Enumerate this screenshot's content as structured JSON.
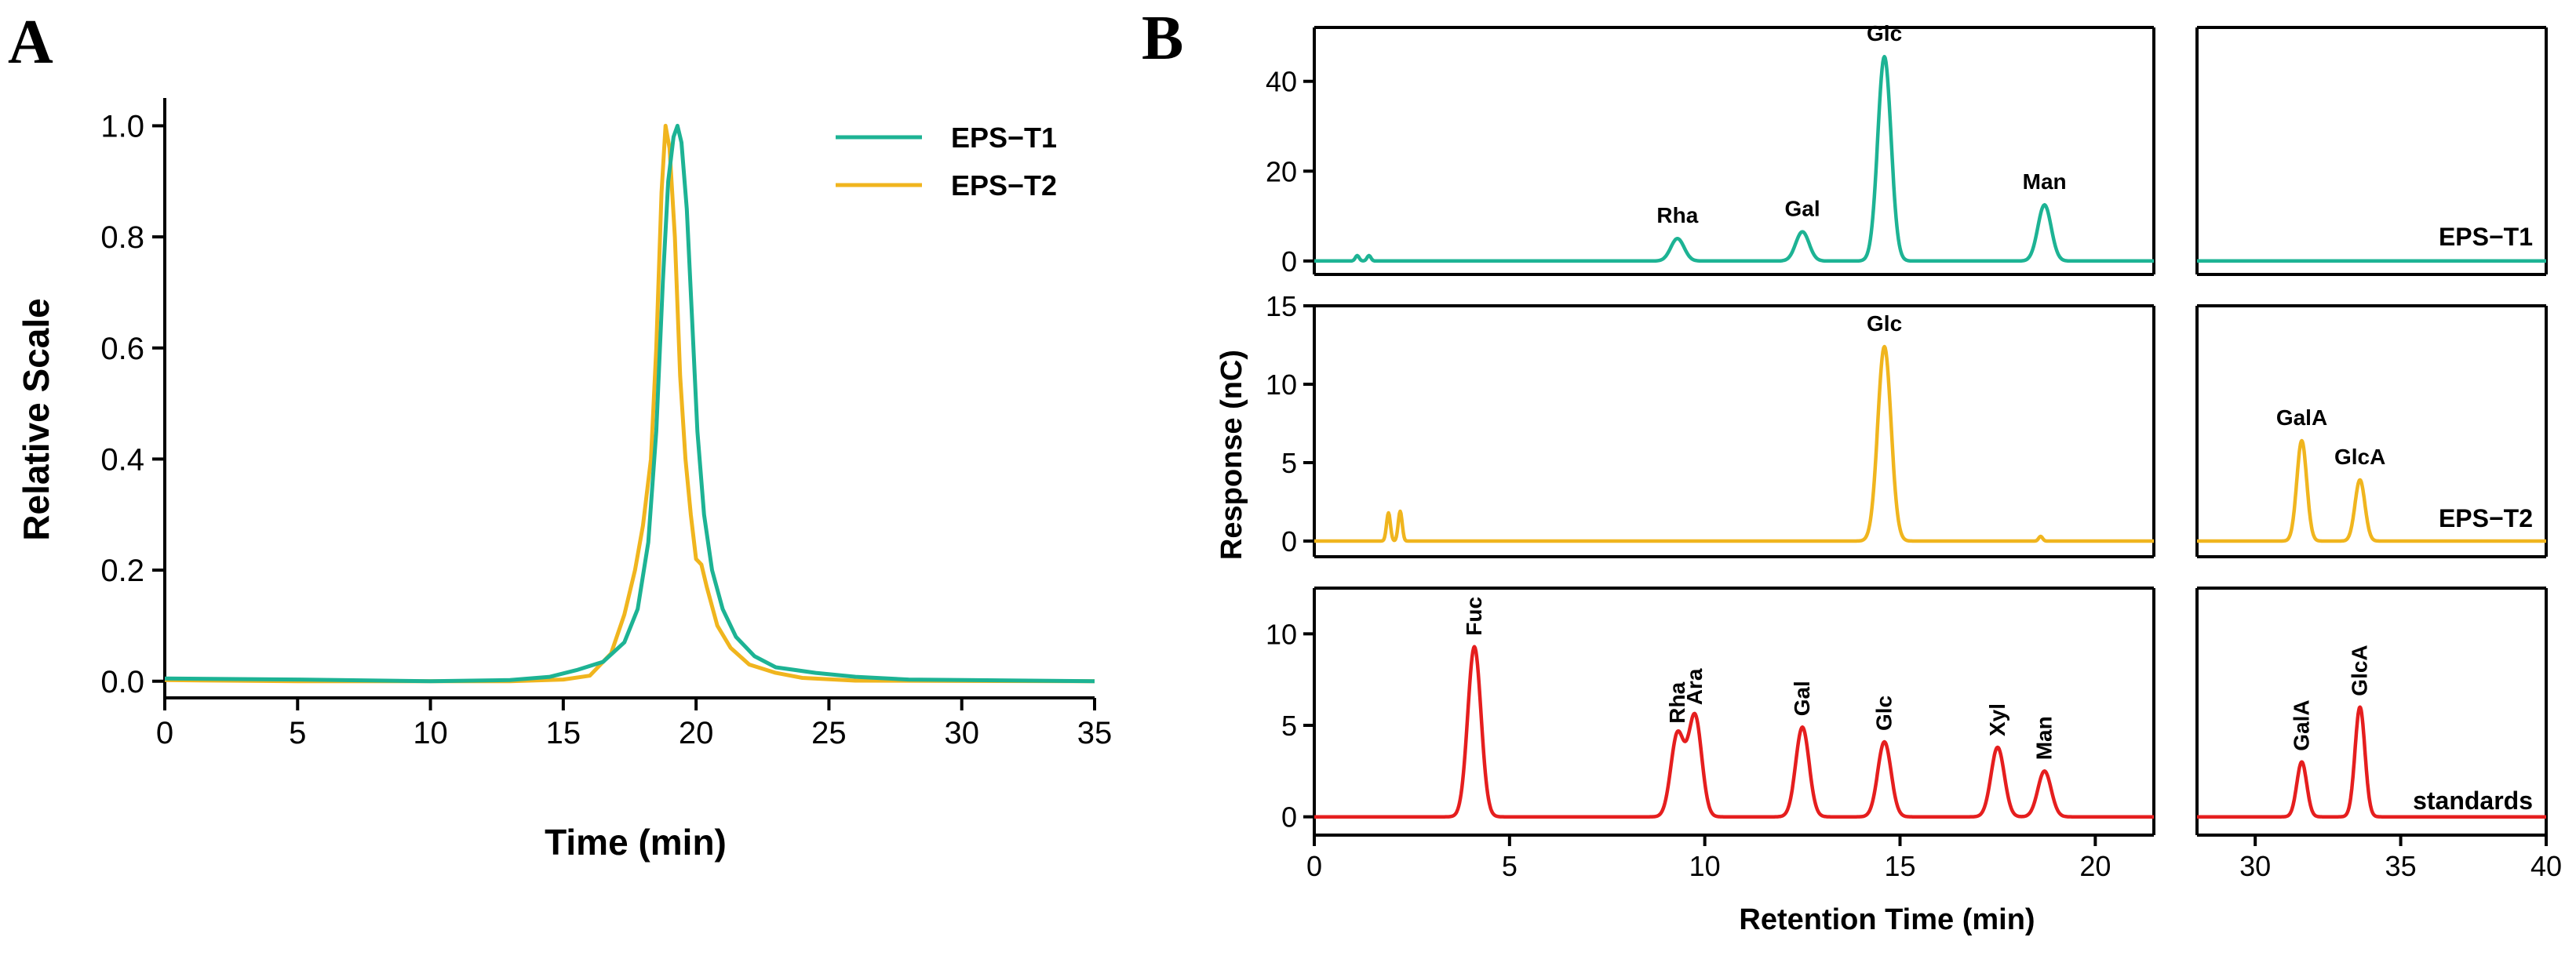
{
  "colors": {
    "t1": "#1db394",
    "t2": "#f0b51e",
    "std": "#e51e1e",
    "axis": "#000000"
  },
  "panel_labels": {
    "a": "A",
    "b": "B"
  },
  "chart_data": [
    {
      "type": "line",
      "panel": "A",
      "title": "",
      "xlabel": "Time (min)",
      "ylabel": "Relative Scale",
      "xlim": [
        0,
        35
      ],
      "ylim": [
        -0.03,
        1.05
      ],
      "xticks": [
        0,
        5,
        10,
        15,
        20,
        25,
        30,
        35
      ],
      "yticks": [
        0.0,
        0.2,
        0.4,
        0.6,
        0.8,
        1.0
      ],
      "ytick_labels": [
        "0.0",
        "0.2",
        "0.4",
        "0.6",
        "0.8",
        "1.0"
      ],
      "legend": {
        "position": "top-right",
        "entries": [
          "EPS−T1",
          "EPS−T2"
        ]
      },
      "series": [
        {
          "name": "EPS−T1",
          "color_key": "t1",
          "points": [
            [
              0,
              0.005
            ],
            [
              5,
              0.003
            ],
            [
              10,
              0.0
            ],
            [
              13,
              0.002
            ],
            [
              14.5,
              0.008
            ],
            [
              15.5,
              0.02
            ],
            [
              16.5,
              0.035
            ],
            [
              17.3,
              0.07
            ],
            [
              17.8,
              0.13
            ],
            [
              18.2,
              0.25
            ],
            [
              18.5,
              0.45
            ],
            [
              18.75,
              0.72
            ],
            [
              18.95,
              0.9
            ],
            [
              19.15,
              0.98
            ],
            [
              19.3,
              1.0
            ],
            [
              19.45,
              0.97
            ],
            [
              19.65,
              0.85
            ],
            [
              19.85,
              0.65
            ],
            [
              20.05,
              0.45
            ],
            [
              20.3,
              0.3
            ],
            [
              20.6,
              0.2
            ],
            [
              21.0,
              0.13
            ],
            [
              21.5,
              0.08
            ],
            [
              22.2,
              0.045
            ],
            [
              23.0,
              0.025
            ],
            [
              24.5,
              0.015
            ],
            [
              26,
              0.008
            ],
            [
              28,
              0.003
            ],
            [
              35,
              0.0
            ]
          ]
        },
        {
          "name": "EPS−T2",
          "color_key": "t2",
          "points": [
            [
              0,
              0.002
            ],
            [
              5,
              0.0
            ],
            [
              10,
              0.0
            ],
            [
              13,
              0.0
            ],
            [
              15,
              0.003
            ],
            [
              16,
              0.01
            ],
            [
              16.8,
              0.05
            ],
            [
              17.3,
              0.12
            ],
            [
              17.7,
              0.2
            ],
            [
              18.0,
              0.28
            ],
            [
              18.3,
              0.4
            ],
            [
              18.5,
              0.6
            ],
            [
              18.7,
              0.88
            ],
            [
              18.85,
              1.0
            ],
            [
              19.0,
              0.96
            ],
            [
              19.2,
              0.8
            ],
            [
              19.4,
              0.55
            ],
            [
              19.6,
              0.4
            ],
            [
              19.8,
              0.3
            ],
            [
              20.0,
              0.22
            ],
            [
              20.2,
              0.21
            ],
            [
              20.4,
              0.17
            ],
            [
              20.8,
              0.1
            ],
            [
              21.3,
              0.06
            ],
            [
              22,
              0.03
            ],
            [
              23,
              0.015
            ],
            [
              24,
              0.006
            ],
            [
              26,
              0.001
            ],
            [
              35,
              0.0
            ]
          ]
        }
      ]
    },
    {
      "type": "line",
      "panel": "B",
      "subplot": "EPS−T1",
      "trace_label": "EPS−T1",
      "xlim": [
        0,
        40
      ],
      "ylim": [
        -3,
        52
      ],
      "yticks": [
        0,
        20,
        40
      ],
      "ylabel": "Response (nC)",
      "color_key": "t1",
      "peaks": [
        {
          "name": "Rha",
          "x": 9.3,
          "y": 5.0
        },
        {
          "name": "Gal",
          "x": 12.5,
          "y": 6.5
        },
        {
          "name": "Glc",
          "x": 14.6,
          "y": 45.5
        },
        {
          "name": "Man",
          "x": 18.7,
          "y": 12.5
        }
      ],
      "noise": [
        {
          "x": 1.1,
          "y": 1.2
        },
        {
          "x": 1.4,
          "y": 1.2
        }
      ]
    },
    {
      "type": "line",
      "panel": "B",
      "subplot": "EPS−T2",
      "trace_label": "EPS−T2",
      "xlim": [
        0,
        40
      ],
      "ylim": [
        -1,
        15
      ],
      "yticks": [
        0,
        5,
        10,
        15
      ],
      "color_key": "t2",
      "peaks": [
        {
          "name": "Glc",
          "x": 14.6,
          "y": 12.4
        },
        {
          "name": "GalA",
          "x": 31.6,
          "y": 6.4
        },
        {
          "name": "GlcA",
          "x": 33.6,
          "y": 3.9
        }
      ],
      "noise": [
        {
          "x": 1.9,
          "y": 1.8
        },
        {
          "x": 2.2,
          "y": 1.9
        },
        {
          "x": 18.6,
          "y": 0.3
        }
      ]
    },
    {
      "type": "line",
      "panel": "B",
      "subplot": "standards",
      "trace_label": "standards",
      "xlim": [
        0,
        40
      ],
      "ylim": [
        -1,
        12.5
      ],
      "yticks": [
        0,
        5,
        10
      ],
      "xlabel": "Retention Time (min)",
      "xticks": [
        0,
        5,
        10,
        15,
        20,
        30,
        35,
        40
      ],
      "axis_break": [
        21.5,
        28
      ],
      "color_key": "std",
      "peaks": [
        {
          "name": "Fuc",
          "x": 4.1,
          "y": 9.3
        },
        {
          "name": "Rha",
          "x": 9.3,
          "y": 4.5
        },
        {
          "name": "Ara",
          "x": 9.75,
          "y": 5.5
        },
        {
          "name": "Gal",
          "x": 12.5,
          "y": 4.9
        },
        {
          "name": "Glc",
          "x": 14.6,
          "y": 4.1
        },
        {
          "name": "Xyl",
          "x": 17.5,
          "y": 3.8
        },
        {
          "name": "Man",
          "x": 18.7,
          "y": 2.5
        },
        {
          "name": "GalA",
          "x": 31.6,
          "y": 3.0
        },
        {
          "name": "GlcA",
          "x": 33.6,
          "y": 6.0
        }
      ],
      "noise": []
    }
  ]
}
